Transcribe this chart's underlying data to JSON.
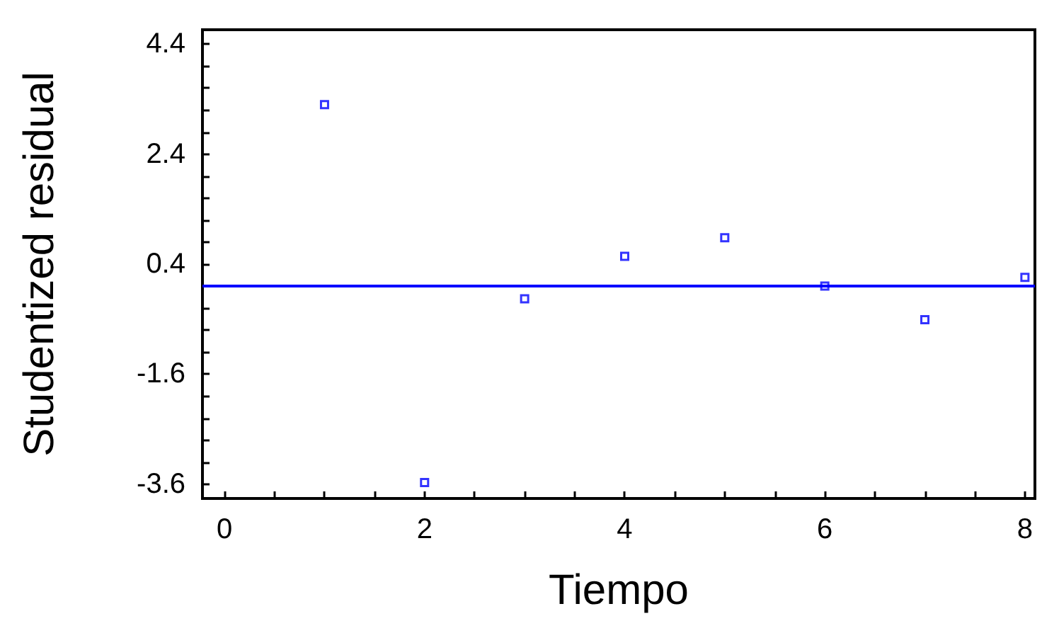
{
  "chart_data": {
    "type": "scatter",
    "xlabel": "Tiempo",
    "ylabel": "Studentized residual",
    "x": [
      1,
      2,
      3,
      4,
      5,
      6,
      7,
      8
    ],
    "series": [
      {
        "color": "#0000ff",
        "values": [
          3.3,
          -3.57,
          -0.23,
          0.54,
          0.88,
          0.0,
          -0.61,
          0.16
        ]
      }
    ],
    "marker": "square",
    "grid": false,
    "xlim": [
      -0.22,
      8.1
    ],
    "ylim": [
      -3.86,
      4.66
    ],
    "xticks": [
      0,
      {
        "value": 0.5,
        "label": null
      },
      {
        "value": 1,
        "label": null
      },
      {
        "value": 1.5,
        "label": null
      },
      2,
      {
        "value": 2.5,
        "label": null
      },
      {
        "value": 3,
        "label": null
      },
      {
        "value": 3.5,
        "label": null
      },
      4,
      {
        "value": 4.5,
        "label": null
      },
      {
        "value": 5,
        "label": null
      },
      {
        "value": 5.5,
        "label": null
      },
      6,
      {
        "value": 6.5,
        "label": null
      },
      {
        "value": 7,
        "label": null
      },
      {
        "value": 7.5,
        "label": null
      },
      8
    ],
    "yticks": [
      -3.6,
      {
        "value": -3.2,
        "label": null
      },
      {
        "value": -2.8,
        "label": null
      },
      {
        "value": -2.4,
        "label": null
      },
      {
        "value": -2,
        "label": null
      },
      -1.6,
      {
        "value": -1.2,
        "label": null
      },
      {
        "value": -0.8,
        "label": null
      },
      {
        "value": -0.4,
        "label": null
      },
      {
        "value": 0,
        "label": null
      },
      0.4,
      {
        "value": 0.8,
        "label": null
      },
      {
        "value": 1.2,
        "label": null
      },
      {
        "value": 1.6,
        "label": null
      },
      {
        "value": 2,
        "label": null
      },
      2.4,
      {
        "value": 2.8,
        "label": null
      },
      {
        "value": 3.2,
        "label": null
      },
      {
        "value": 3.6,
        "label": null
      },
      {
        "value": 4,
        "label": null
      },
      4.4
    ],
    "ref_lines": [
      {
        "axis": "y",
        "value": 0,
        "color": "#0000ff",
        "line_style": "solid"
      }
    ]
  }
}
